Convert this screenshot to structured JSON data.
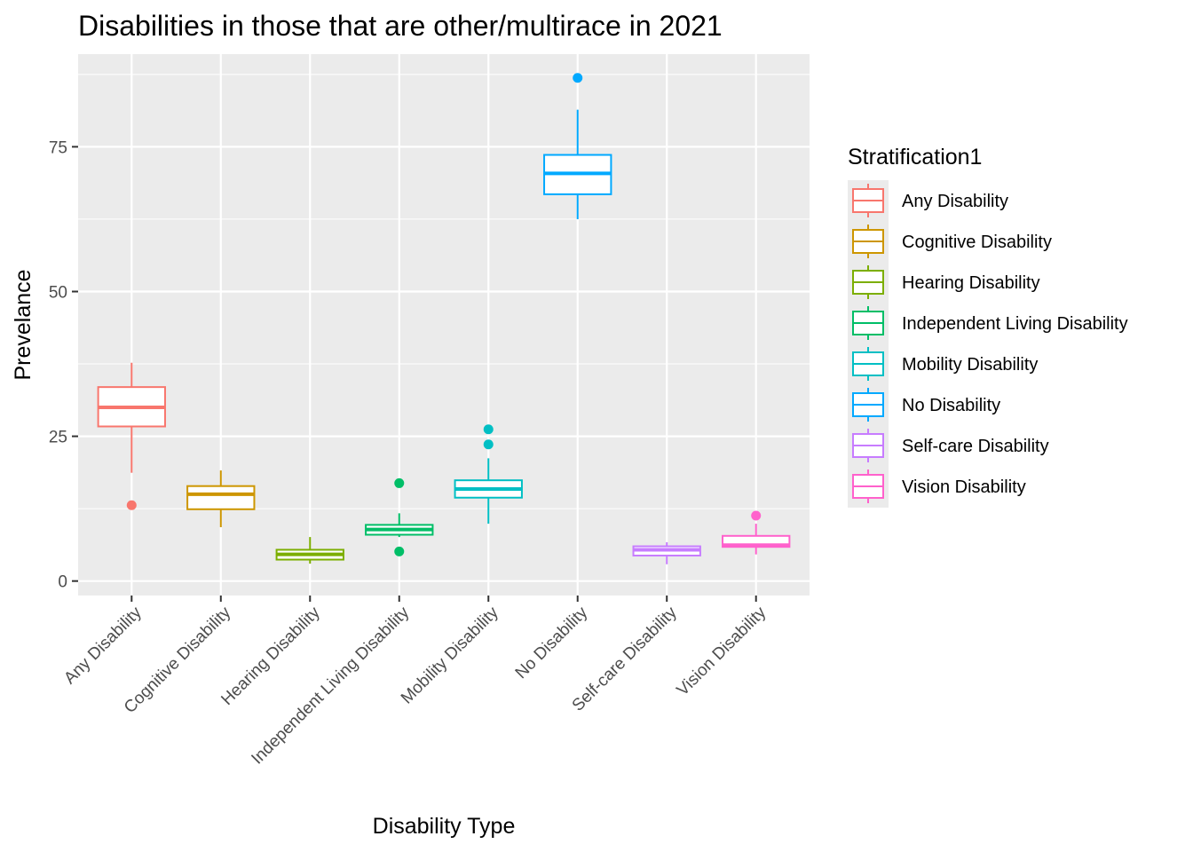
{
  "chart_data": {
    "type": "boxplot",
    "title": "Disabilities in those that are other/multirace in 2021",
    "xlabel": "Disability Type",
    "ylabel": "Prevelance",
    "ylim": [
      -2.5,
      91
    ],
    "yticks": [
      0,
      25,
      50,
      75
    ],
    "grid": true,
    "legend": {
      "title": "Stratification1",
      "placement": "right"
    },
    "categories": [
      "Any Disability",
      "Cognitive Disability",
      "Hearing Disability",
      "Independent Living Disability",
      "Mobility Disability",
      "No Disability",
      "Self-care Disability",
      "Vision Disability"
    ],
    "colors": [
      "#F8766D",
      "#CD9600",
      "#7CAE00",
      "#00BE67",
      "#00BFC4",
      "#00A9FF",
      "#C77CFF",
      "#FF61CC"
    ],
    "boxes": [
      {
        "name": "Any Disability",
        "min": 18.7,
        "q1": 26.7,
        "median": 30.0,
        "q3": 33.5,
        "max": 37.7,
        "outliers": [
          13.1
        ]
      },
      {
        "name": "Cognitive Disability",
        "min": 9.3,
        "q1": 12.4,
        "median": 15.0,
        "q3": 16.4,
        "max": 19.1,
        "outliers": []
      },
      {
        "name": "Hearing Disability",
        "min": 3.0,
        "q1": 3.7,
        "median": 4.6,
        "q3": 5.4,
        "max": 7.6,
        "outliers": []
      },
      {
        "name": "Independent Living Disability",
        "min": 7.6,
        "q1": 8.0,
        "median": 8.9,
        "q3": 9.7,
        "max": 11.7,
        "outliers": [
          16.9,
          5.1
        ]
      },
      {
        "name": "Mobility Disability",
        "min": 9.9,
        "q1": 14.4,
        "median": 15.9,
        "q3": 17.4,
        "max": 21.2,
        "outliers": [
          23.6,
          26.2
        ]
      },
      {
        "name": "No Disability",
        "min": 62.5,
        "q1": 66.8,
        "median": 70.4,
        "q3": 73.6,
        "max": 81.4,
        "outliers": [
          86.9
        ]
      },
      {
        "name": "Self-care Disability",
        "min": 2.9,
        "q1": 4.4,
        "median": 5.4,
        "q3": 6.0,
        "max": 6.7,
        "outliers": []
      },
      {
        "name": "Vision Disability",
        "min": 4.6,
        "q1": 5.9,
        "median": 6.2,
        "q3": 7.8,
        "max": 9.9,
        "outliers": [
          11.3
        ]
      }
    ]
  }
}
